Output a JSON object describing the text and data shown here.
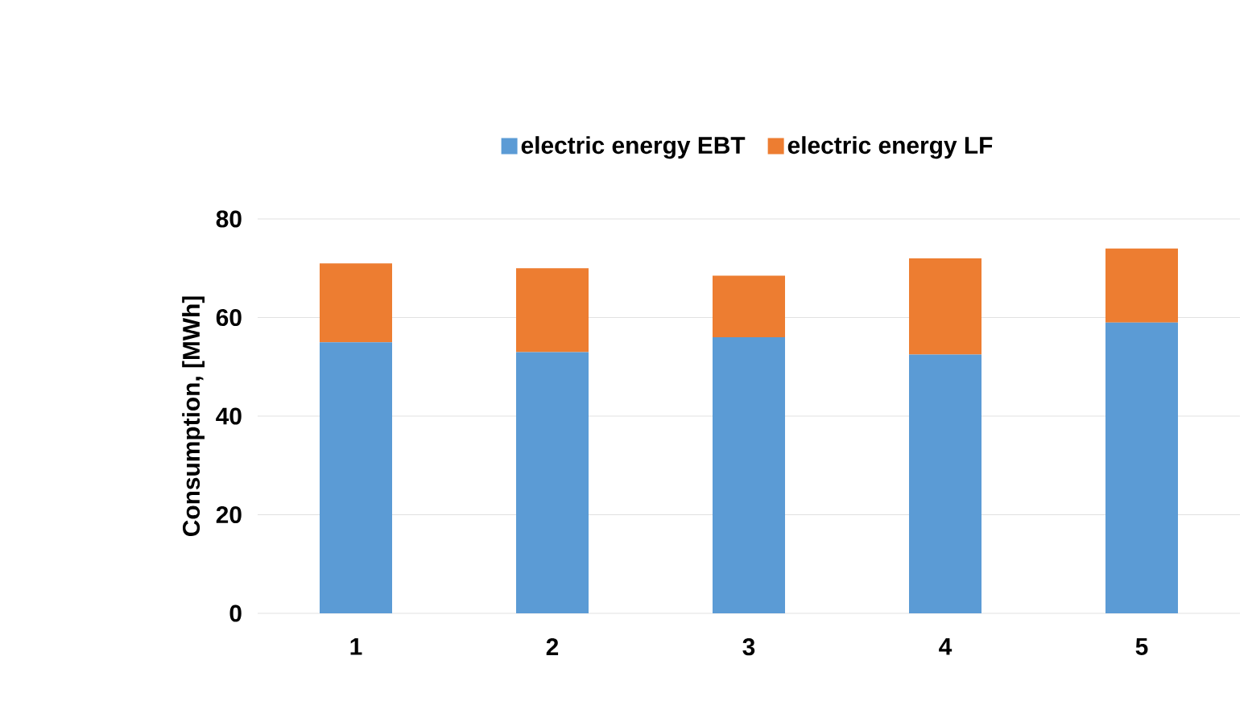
{
  "chart_data": {
    "type": "bar",
    "ylabel": "Consumption, [MWh]",
    "categories": [
      "1",
      "2",
      "3",
      "4",
      "5"
    ],
    "stacked": true,
    "series": [
      {
        "name": "electric energy  EBT",
        "color": "#5b9bd5",
        "values": [
          55,
          53,
          56,
          52.5,
          59
        ]
      },
      {
        "name": "electric energy  LF",
        "color": "#ed7d31",
        "values": [
          16,
          17,
          12.5,
          19.5,
          15
        ]
      }
    ],
    "ylim": [
      0,
      80
    ],
    "yticks": [
      0,
      20,
      40,
      60,
      80
    ],
    "grid": "y",
    "legend": "top"
  }
}
